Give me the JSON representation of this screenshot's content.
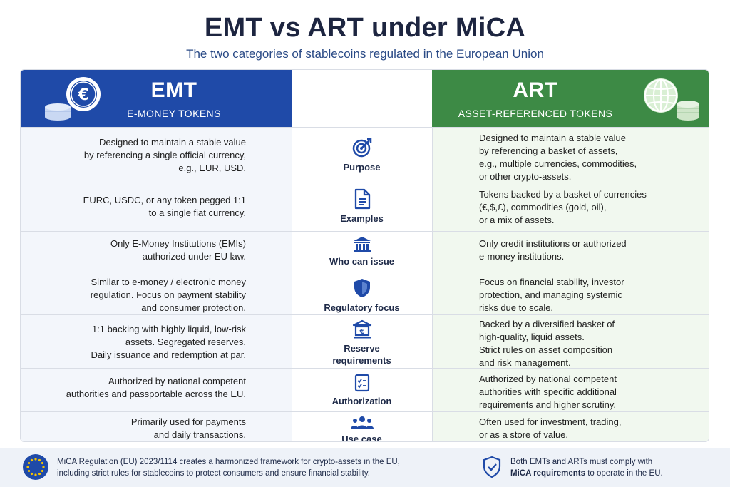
{
  "title": "EMT vs ART under MiCA",
  "subtitle": "The two categories of stablecoins regulated in the European Union",
  "emt": {
    "title": "EMT",
    "subtitle": "E-MONEY TOKENS",
    "icon": "euro-coin-stack-icon",
    "color": "#1f4aa8"
  },
  "art": {
    "title": "ART",
    "subtitle": "ASSET-REFERENCED TOKENS",
    "icon": "globe-coin-stack-icon",
    "color": "#3d8a45"
  },
  "rows": [
    {
      "label": "Purpose",
      "icon": "target-icon",
      "emt": [
        "Designed to maintain a stable value",
        "by referencing a single official currency,",
        "e.g., EUR, USD."
      ],
      "art": [
        "Designed to maintain a stable value",
        "by referencing a basket of assets,",
        "e.g., multiple currencies, commodities,",
        "or other crypto-assets."
      ]
    },
    {
      "label": "Examples",
      "icon": "document-icon",
      "emt": [
        "EURC, USDC, or any token pegged 1:1",
        "to a single fiat currency."
      ],
      "art": [
        "Tokens backed by a basket of currencies",
        "(€,$,£), commodities (gold, oil),",
        "or a mix of assets."
      ]
    },
    {
      "label": "Who can issue",
      "icon": "bank-icon",
      "emt": [
        "Only E-Money Institutions (EMIs)",
        "authorized under EU law."
      ],
      "art": [
        "Only credit institutions or authorized",
        "e-money institutions."
      ]
    },
    {
      "label": "Regulatory focus",
      "icon": "shield-icon",
      "emt": [
        "Similar to e-money / electronic money",
        "regulation. Focus on payment stability",
        "and consumer protection."
      ],
      "art": [
        "Focus on financial stability, investor",
        "protection, and managing systemic",
        "risks due to scale."
      ]
    },
    {
      "label": "Reserve requirements",
      "label_lines": [
        "Reserve",
        "requirements"
      ],
      "icon": "euro-bank-icon",
      "emt": [
        "1:1 backing with highly liquid, low-risk",
        "assets. Segregated reserves.",
        "Daily issuance and redemption at par."
      ],
      "art": [
        "Backed by a diversified basket of",
        "high-quality, liquid assets.",
        "Strict rules on asset composition",
        "and risk management."
      ]
    },
    {
      "label": "Authorization",
      "icon": "clipboard-check-icon",
      "emt": [
        "Authorized by national competent",
        "authorities and passportable across the EU."
      ],
      "art": [
        "Authorized by national competent",
        "authorities with specific additional",
        "requirements and higher scrutiny."
      ]
    },
    {
      "label": "Use case",
      "icon": "users-icon",
      "emt": [
        "Primarily used for payments",
        "and daily transactions."
      ],
      "art": [
        "Often used for investment, trading,",
        "or as a store of value."
      ]
    }
  ],
  "footer": {
    "left_icon": "eu-flag-icon",
    "left_lines": [
      "MiCA Regulation (EU) 2023/1114 creates a harmonized framework for crypto-assets in the EU,",
      "including strict rules for stablecoins to protect consumers and ensure financial stability."
    ],
    "right_icon": "shield-check-icon",
    "right_line1": "Both EMTs and ARTs must comply with",
    "right_bold": "MiCA requirements",
    "right_rest": " to operate in the EU."
  }
}
